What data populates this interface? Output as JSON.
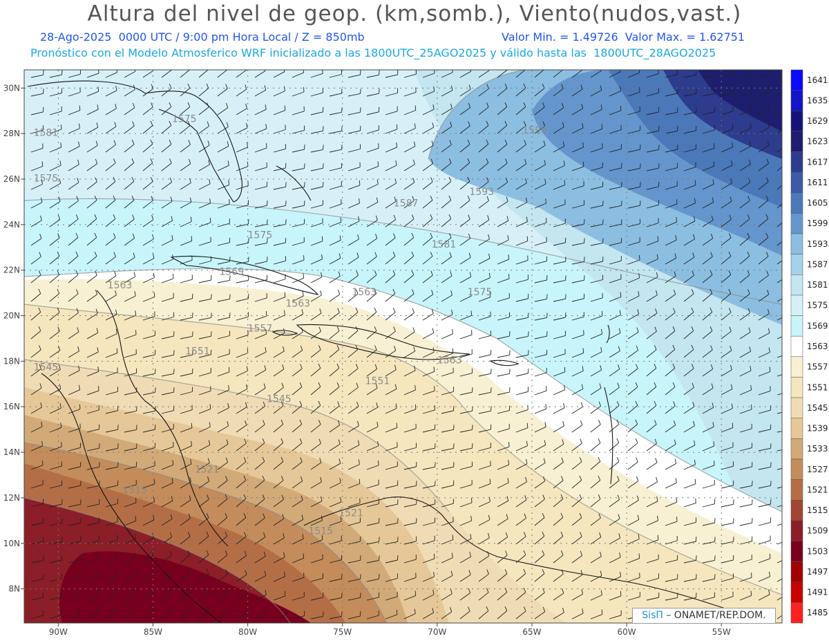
{
  "header": {
    "title": "Altura del nivel de geop. (km,somb.), Viento(nudos,vast.)",
    "date_line": "28-Ago-2025  0000 UTC / 9:00 pm Hora Local / Z = 850mb",
    "minmax_line": "Valor Min. = 1.49726  Valor Max. = 1.62751",
    "model_line": "Pronóstico con el Modelo Atmosferico WRF inicializado a las 1800UTC_25AGO2025 y válido hasta las  1800UTC_28AGO2025"
  },
  "axes": {
    "lat_labels": [
      "30N",
      "28N",
      "26N",
      "24N",
      "22N",
      "20N",
      "18N",
      "16N",
      "14N",
      "12N",
      "10N",
      "8N"
    ],
    "lon_labels": [
      "90W",
      "85W",
      "80W",
      "75W",
      "70W",
      "65W",
      "60W",
      "55W"
    ]
  },
  "colorbar": {
    "levels": [
      "1641",
      "1635",
      "1629",
      "1623",
      "1617",
      "1611",
      "1605",
      "1599",
      "1593",
      "1587",
      "1581",
      "1575",
      "1569",
      "1563",
      "1557",
      "1551",
      "1545",
      "1539",
      "1533",
      "1527",
      "1521",
      "1515",
      "1509",
      "1503",
      "1497",
      "1491",
      "1485"
    ],
    "colors": [
      "#0a0aff",
      "#1414c8",
      "#141478",
      "#1e1e6e",
      "#2d3c8c",
      "#3c5aa5",
      "#4b78b9",
      "#6496cd",
      "#8cbee1",
      "#a5d2eb",
      "#c3e6f0",
      "#d7f0f8",
      "#c8f5fb",
      "#ffffff",
      "#f8f0d2",
      "#f5e6be",
      "#f0dcb4",
      "#e6c898",
      "#d2aa78",
      "#c38c5a",
      "#b46e46",
      "#a04632",
      "#8c1e28",
      "#78001e",
      "#a00000",
      "#c80000",
      "#ff2020"
    ]
  },
  "contour_labels": [
    {
      "text": "1581",
      "lon": -91.3,
      "lat": 27.9
    },
    {
      "text": "1575",
      "lon": -91.3,
      "lat": 25.9
    },
    {
      "text": "1575",
      "lon": -84.0,
      "lat": 28.5
    },
    {
      "text": "1575",
      "lon": -80.0,
      "lat": 23.4
    },
    {
      "text": "1569",
      "lon": -81.5,
      "lat": 21.8
    },
    {
      "text": "1563",
      "lon": -87.4,
      "lat": 21.2
    },
    {
      "text": "1563",
      "lon": -78.0,
      "lat": 20.4
    },
    {
      "text": "1563",
      "lon": -74.5,
      "lat": 20.9
    },
    {
      "text": "1557",
      "lon": -80.0,
      "lat": 19.3
    },
    {
      "text": "1551",
      "lon": -83.3,
      "lat": 18.3
    },
    {
      "text": "1545",
      "lon": -91.3,
      "lat": 17.6
    },
    {
      "text": "1545",
      "lon": -79.0,
      "lat": 16.2
    },
    {
      "text": "1551",
      "lon": -73.8,
      "lat": 17.0
    },
    {
      "text": "1563",
      "lon": -70.0,
      "lat": 17.9
    },
    {
      "text": "1587",
      "lon": -72.3,
      "lat": 24.8
    },
    {
      "text": "1581",
      "lon": -70.3,
      "lat": 23.0
    },
    {
      "text": "1575",
      "lon": -68.4,
      "lat": 20.9
    },
    {
      "text": "1593",
      "lon": -68.3,
      "lat": 25.3
    },
    {
      "text": "1599",
      "lon": -65.5,
      "lat": 28.0
    },
    {
      "text": "1521",
      "lon": -82.8,
      "lat": 13.1
    },
    {
      "text": "1515",
      "lon": -86.6,
      "lat": 12.2
    },
    {
      "text": "1521",
      "lon": -75.2,
      "lat": 11.2
    },
    {
      "text": "1515",
      "lon": -76.8,
      "lat": 10.4
    }
  ],
  "credit": {
    "brand": "SisΠ",
    "text": "– ONAMET/REP.DOM."
  }
}
